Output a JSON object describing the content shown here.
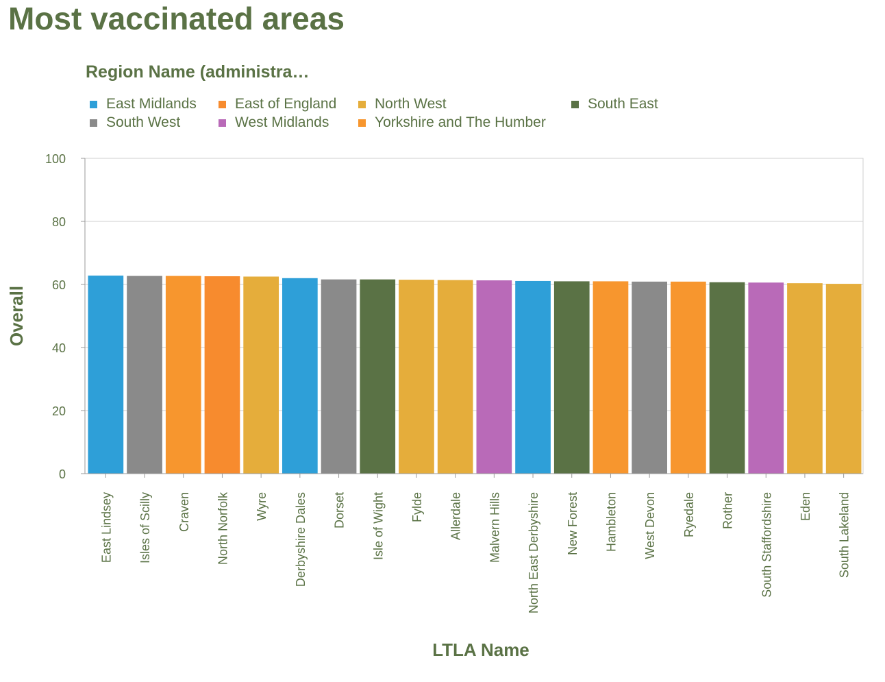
{
  "title": "Most vaccinated areas",
  "legend": {
    "title": "Region Name (administra…",
    "items": [
      {
        "label": "East Midlands",
        "color": "#2e9fd8"
      },
      {
        "label": "East of England",
        "color": "#f78b2e"
      },
      {
        "label": "North West",
        "color": "#e5ad3b"
      },
      {
        "label": "South East",
        "color": "#5a7245"
      },
      {
        "label": "South West",
        "color": "#8a8a8a"
      },
      {
        "label": "West Midlands",
        "color": "#b96ab8"
      },
      {
        "label": "Yorkshire and The Humber",
        "color": "#f7962e"
      }
    ]
  },
  "chart_data": {
    "type": "bar",
    "xlabel": "LTLA Name",
    "ylabel": "Overall",
    "ylim": [
      0,
      100
    ],
    "yticks": [
      0,
      20,
      40,
      60,
      80,
      100
    ],
    "grid": true,
    "legend_placement": "top",
    "categories": [
      "East Lindsey",
      "Isles of Scilly",
      "Craven",
      "North Norfolk",
      "Wyre",
      "Derbyshire Dales",
      "Dorset",
      "Isle of Wight",
      "Fylde",
      "Allerdale",
      "Malvern Hills",
      "North East Derbyshire",
      "New Forest",
      "Hambleton",
      "West Devon",
      "Ryedale",
      "Rother",
      "South Staffordshire",
      "Eden",
      "South Lakeland"
    ],
    "values": [
      62.8,
      62.7,
      62.7,
      62.6,
      62.5,
      62.0,
      61.6,
      61.6,
      61.5,
      61.4,
      61.3,
      61.1,
      61.0,
      61.0,
      60.9,
      60.9,
      60.7,
      60.6,
      60.4,
      60.2
    ],
    "regions": [
      "East Midlands",
      "South West",
      "Yorkshire and The Humber",
      "East of England",
      "North West",
      "East Midlands",
      "South West",
      "South East",
      "North West",
      "North West",
      "West Midlands",
      "East Midlands",
      "South East",
      "Yorkshire and The Humber",
      "South West",
      "Yorkshire and The Humber",
      "South East",
      "West Midlands",
      "North West",
      "North West"
    ]
  }
}
